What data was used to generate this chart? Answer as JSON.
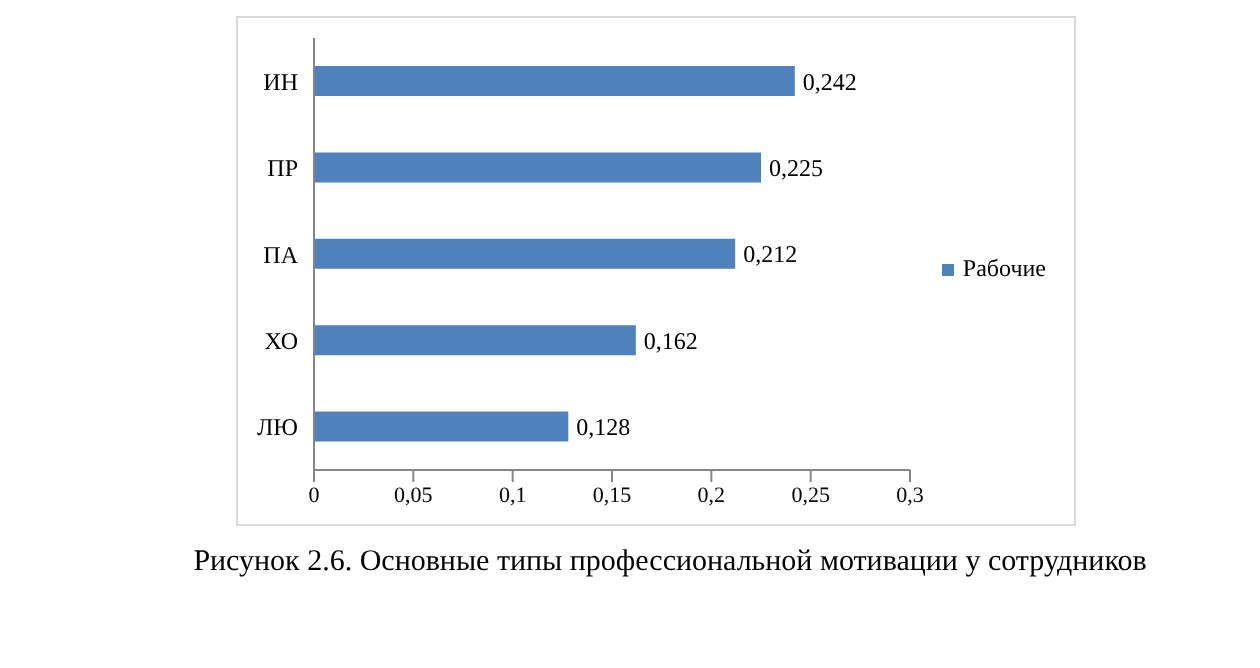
{
  "chart_data": {
    "type": "bar",
    "orientation": "horizontal",
    "categories": [
      "ИН",
      "ПР",
      "ПА",
      "ХО",
      "ЛЮ"
    ],
    "series": [
      {
        "name": "Рабочие",
        "color": "#4f81bd",
        "values": [
          0.242,
          0.225,
          0.212,
          0.162,
          0.128
        ],
        "value_labels": [
          "0,242",
          "0,225",
          "0,212",
          "0,162",
          "0,128"
        ]
      }
    ],
    "xlim": [
      0,
      0.3
    ],
    "xticks": [
      0,
      {
        "value": 0.05,
        "label": "0,05"
      },
      {
        "value": 0.1,
        "label": "0,1"
      },
      {
        "value": 0.15,
        "label": "0,15"
      },
      {
        "value": 0.2,
        "label": "0,2"
      },
      {
        "value": 0.25,
        "label": "0,25"
      },
      {
        "value": 0.3,
        "label": "0,3"
      }
    ],
    "grid": false,
    "legend": "right",
    "annotations": [
      "Рисунок  2.6.  Основные типы профессиональной мотивации у сотрудников"
    ]
  }
}
